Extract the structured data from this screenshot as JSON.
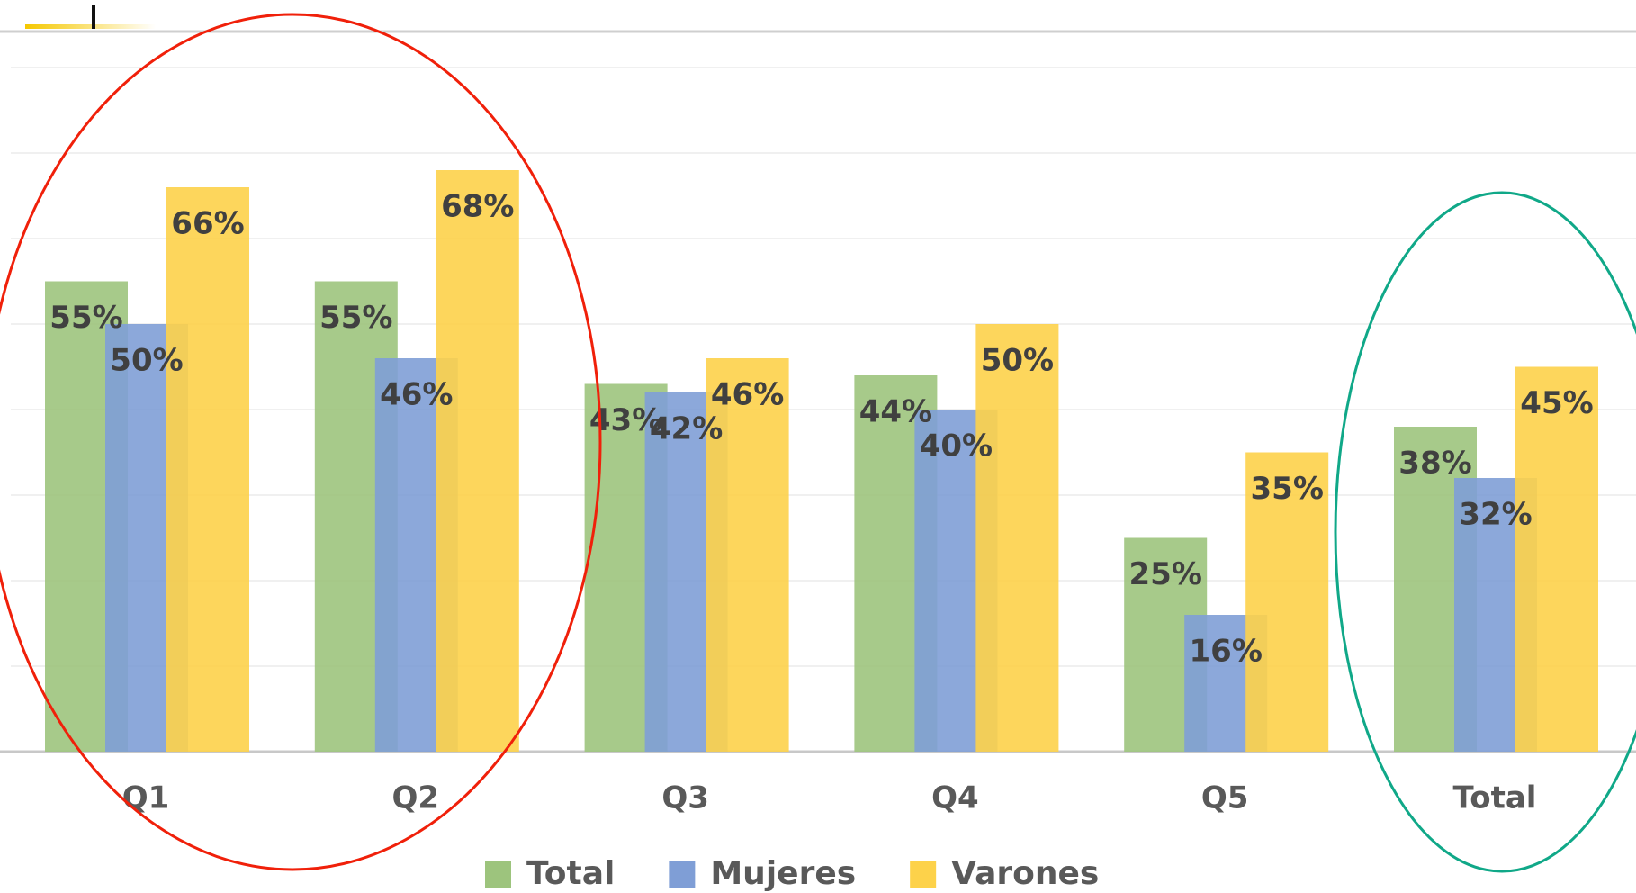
{
  "chart_data": {
    "type": "bar",
    "categories": [
      "Q1",
      "Q2",
      "Q3",
      "Q4",
      "Q5",
      "Total"
    ],
    "series": [
      {
        "name": "Total",
        "color": "#9dc47d",
        "values": [
          55,
          55,
          43,
          44,
          25,
          38
        ],
        "value_labels": [
          "55%",
          "55%",
          "43%",
          "44%",
          "25%",
          "38%"
        ]
      },
      {
        "name": "Mujeres",
        "color": "#7f9ed6",
        "values": [
          50,
          46,
          42,
          40,
          16,
          32
        ],
        "value_labels": [
          "50%",
          "46%",
          "42%",
          "40%",
          "16%",
          "32%"
        ]
      },
      {
        "name": "Varones",
        "color": "#fdd24a",
        "values": [
          66,
          68,
          46,
          50,
          35,
          45
        ],
        "value_labels": [
          "66%",
          "68%",
          "46%",
          "50%",
          "35%",
          "45%"
        ]
      }
    ],
    "ylim": [
      0,
      80
    ],
    "yticks": [
      0,
      10,
      20,
      30,
      40,
      50,
      60,
      70,
      80
    ],
    "grid": true,
    "legend": "bottom"
  }
}
